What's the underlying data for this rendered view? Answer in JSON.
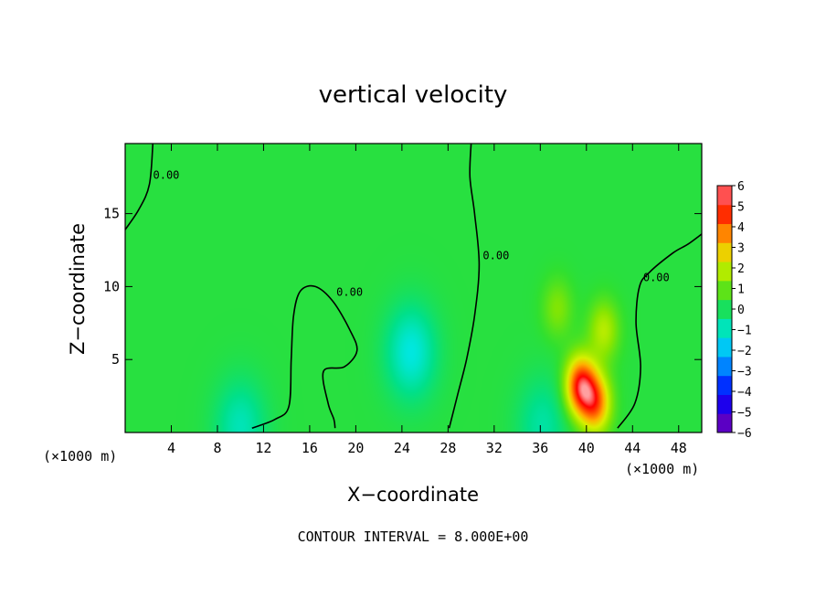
{
  "chart_data": {
    "type": "heatmap",
    "title": "vertical velocity",
    "xlabel": "X−coordinate",
    "ylabel": "Z−coordinate",
    "x_unit_label": "(×1000 m)",
    "y_unit_label": "(×1000 m)",
    "xlim": [
      0,
      50
    ],
    "ylim": [
      0,
      19.8
    ],
    "x_ticks": [
      4,
      8,
      12,
      16,
      20,
      24,
      28,
      32,
      36,
      40,
      44,
      48
    ],
    "y_ticks": [
      5,
      10,
      15
    ],
    "colorbar": {
      "range": [
        -6,
        6
      ],
      "ticks": [
        6,
        5,
        4,
        3,
        2,
        1,
        0,
        -1,
        -2,
        -3,
        -4,
        -5,
        -6
      ],
      "tick_labels": [
        "6",
        "5",
        "4",
        "3",
        "2",
        "1",
        "0",
        "−1",
        "−2",
        "−3",
        "−4",
        "−5",
        "−6"
      ],
      "colors": [
        "#7b00b0",
        "#3a00d8",
        "#0000ff",
        "#0060ff",
        "#00a8ff",
        "#00e8e8",
        "#00e08a",
        "#30e030",
        "#8ae600",
        "#d8f000",
        "#ffb000",
        "#ff5a00",
        "#ff0000",
        "#ffa0a0"
      ]
    },
    "background_value": 0.3,
    "features": [
      {
        "kind": "updraft",
        "x": 39.5,
        "z": 3.2,
        "peak": 4.6
      },
      {
        "kind": "updraft",
        "x": 40.8,
        "z": 2.0,
        "peak": 3.5
      },
      {
        "kind": "updraft",
        "x": 41.5,
        "z": 7.0,
        "peak": 1.6
      },
      {
        "kind": "updraft",
        "x": 37.5,
        "z": 8.5,
        "peak": 1.0
      },
      {
        "kind": "downdraft",
        "x": 24.8,
        "z": 5.5,
        "peak": -1.6
      },
      {
        "kind": "downdraft",
        "x": 10,
        "z": 0.4,
        "peak": -1.2
      },
      {
        "kind": "downdraft",
        "x": 36.2,
        "z": 0.5,
        "peak": -1.0
      }
    ],
    "contours": [
      {
        "level": 0,
        "label": "0.00",
        "points": [
          [
            0,
            13.9
          ],
          [
            1.2,
            15.3
          ],
          [
            2.1,
            17.0
          ],
          [
            2.4,
            19.8
          ]
        ]
      },
      {
        "level": 0,
        "label": "0.00",
        "points": [
          [
            11,
            0.3
          ],
          [
            13,
            0.9
          ],
          [
            14.2,
            1.8
          ],
          [
            14.4,
            5
          ],
          [
            14.6,
            8
          ],
          [
            15.2,
            9.7
          ],
          [
            16.5,
            10
          ],
          [
            18,
            9
          ],
          [
            19.5,
            7
          ],
          [
            20.1,
            5.6
          ],
          [
            19,
            4.5
          ],
          [
            17.2,
            4.2
          ],
          [
            17.6,
            2
          ],
          [
            18.1,
            0.9
          ],
          [
            18.2,
            0.3
          ]
        ]
      },
      {
        "level": 0,
        "label": "0.00",
        "points": [
          [
            28.1,
            0.3
          ],
          [
            28.8,
            2.5
          ],
          [
            29.6,
            5
          ],
          [
            30.3,
            8
          ],
          [
            30.7,
            11.5
          ],
          [
            30.3,
            15
          ],
          [
            29.9,
            17.5
          ],
          [
            30.0,
            19.8
          ]
        ]
      },
      {
        "level": 0,
        "label": "0.00",
        "points": [
          [
            42.7,
            0.3
          ],
          [
            44.2,
            2
          ],
          [
            44.7,
            4.5
          ],
          [
            44.3,
            7.5
          ],
          [
            44.6,
            10.0
          ],
          [
            45.5,
            11.0
          ],
          [
            47.5,
            12.3
          ],
          [
            48.8,
            12.9
          ],
          [
            50,
            13.6
          ]
        ]
      }
    ],
    "contour_interval_label": "CONTOUR INTERVAL = 8.000E+00"
  }
}
